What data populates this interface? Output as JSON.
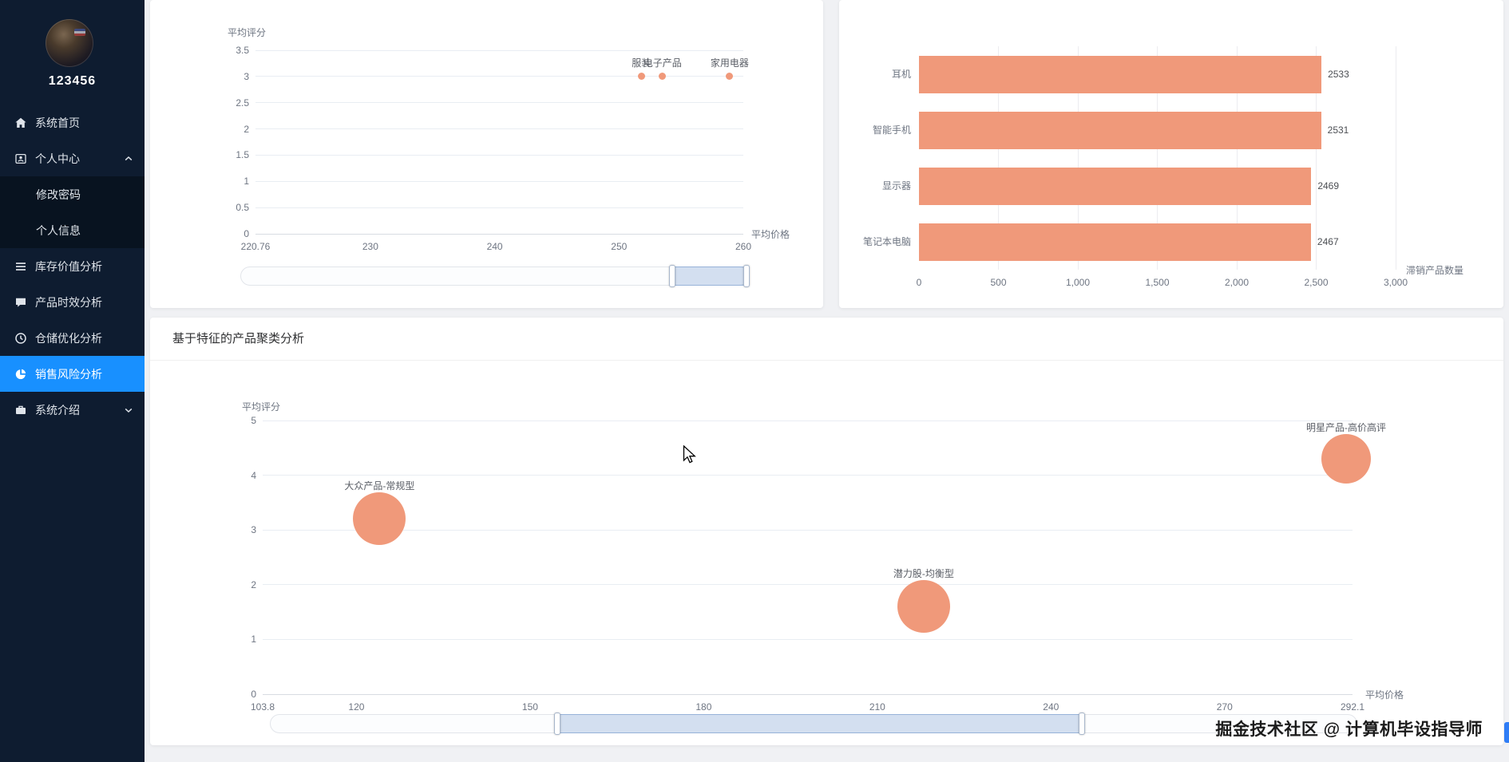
{
  "colors": {
    "accent": "#f0997a",
    "active_blue": "#1890ff",
    "sidebar_bg": "#0e1c30",
    "page_bg": "#f0f1f4"
  },
  "sidebar": {
    "username": "123456",
    "items": [
      {
        "label": "系统首页",
        "icon": "home-icon"
      },
      {
        "label": "个人中心",
        "icon": "user-card-icon",
        "expanded": true
      },
      {
        "label": "修改密码",
        "submenu": true
      },
      {
        "label": "个人信息",
        "submenu": true
      },
      {
        "label": "库存价值分析",
        "icon": "list-icon"
      },
      {
        "label": "产品时效分析",
        "icon": "chat-icon"
      },
      {
        "label": "仓储优化分析",
        "icon": "clock-icon"
      },
      {
        "label": "销售风险分析",
        "icon": "pie-icon",
        "active": true
      },
      {
        "label": "系统介绍",
        "icon": "briefcase-icon",
        "collapsed": true
      }
    ]
  },
  "cluster_section": {
    "title": "基于特征的产品聚类分析"
  },
  "watermark": "掘金技术社区 @ 计算机毕设指导师",
  "chart_data": [
    {
      "id": "rating-price-scatter",
      "type": "scatter",
      "xlabel": "平均价格",
      "ylabel": "平均评分",
      "xlim": [
        220.76,
        260
      ],
      "ylim": [
        0,
        3.5
      ],
      "xticks": [
        220.76,
        230,
        240,
        250,
        260
      ],
      "xtick_labels": [
        "220.76",
        "230",
        "240",
        "250",
        "260"
      ],
      "yticks": [
        0,
        0.5,
        1,
        1.5,
        2,
        2.5,
        3,
        3.5
      ],
      "ytick_labels": [
        "0",
        "0.5",
        "1",
        "1.5",
        "2",
        "2.5",
        "3",
        "3.5"
      ],
      "points": [
        {
          "name": "服装",
          "x": 251.8,
          "y": 3
        },
        {
          "name": "电子产品",
          "x": 253.5,
          "y": 3
        },
        {
          "name": "家用电器",
          "x": 258.9,
          "y": 3
        }
      ],
      "zoom": {
        "start": 85,
        "end": 99.5
      }
    },
    {
      "id": "slow-moving-bar",
      "type": "bar",
      "xlabel": "滞销产品数量",
      "categories": [
        "耳机",
        "智能手机",
        "显示器",
        "笔记本电脑"
      ],
      "values": [
        2533,
        2531,
        2469,
        2467
      ],
      "xlim": [
        0,
        3000
      ],
      "xticks": [
        0,
        500,
        1000,
        1500,
        2000,
        2500,
        3000
      ],
      "xtick_labels": [
        "0",
        "500",
        "1,000",
        "1,500",
        "2,000",
        "2,500",
        "3,000"
      ]
    },
    {
      "id": "cluster-bubble",
      "type": "scatter",
      "title": "基于特征的产品聚类分析",
      "xlabel": "平均价格",
      "ylabel": "平均评分",
      "xlim": [
        103.8,
        292.1
      ],
      "ylim": [
        0,
        5
      ],
      "xticks": [
        103.8,
        120,
        150,
        180,
        210,
        240,
        270,
        292.1
      ],
      "xtick_labels": [
        "103.8",
        "120",
        "150",
        "180",
        "210",
        "240",
        "270",
        "292.1"
      ],
      "yticks": [
        0,
        1,
        2,
        3,
        4,
        5
      ],
      "ytick_labels": [
        "0",
        "1",
        "2",
        "3",
        "4",
        "5"
      ],
      "points": [
        {
          "name": "大众产品-常规型",
          "x": 124,
          "y": 3.2,
          "r": 33
        },
        {
          "name": "潜力股-均衡型",
          "x": 218,
          "y": 1.6,
          "r": 33
        },
        {
          "name": "明星产品-高价高评",
          "x": 291,
          "y": 4.3,
          "r": 31
        }
      ],
      "zoom": {
        "start": 26.4,
        "end": 74.7
      }
    }
  ]
}
